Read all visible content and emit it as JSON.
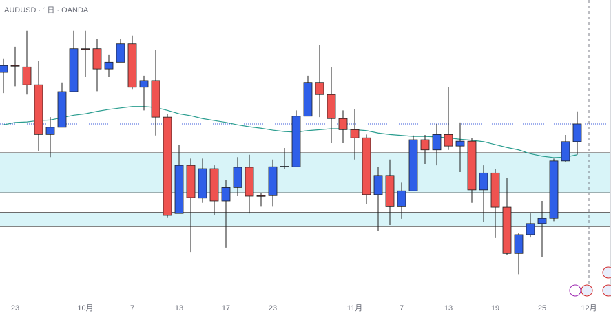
{
  "chart_data": {
    "type": "candlestick",
    "title": "AUDUSD · 1日 · OANDA",
    "categories": [
      null,
      "23",
      null,
      null,
      null,
      null,
      null,
      "10月",
      null,
      null,
      null,
      "7",
      null,
      null,
      null,
      "13",
      null,
      null,
      null,
      "17",
      null,
      null,
      null,
      "23",
      null,
      null,
      null,
      null,
      null,
      null,
      "11月",
      null,
      null,
      null,
      "7",
      null,
      null,
      null,
      "13",
      null,
      null,
      null,
      "19",
      null,
      null,
      null,
      "25",
      null,
      null,
      null,
      "12月"
    ],
    "open": [
      0.685,
      0.6864,
      0.6861,
      0.6824,
      0.6721,
      0.6736,
      0.681,
      0.6899,
      0.6899,
      0.6857,
      0.6871,
      0.6909,
      0.6819,
      0.6833,
      0.6757,
      0.6557,
      0.6657,
      0.6589,
      0.665,
      0.6583,
      0.6611,
      0.6653,
      0.6594,
      0.6594,
      0.6654,
      0.6654,
      0.6759,
      0.6829,
      0.6804,
      0.6754,
      0.6731,
      0.6714,
      0.6596,
      0.6636,
      0.6571,
      0.6604,
      0.671,
      0.6689,
      0.6721,
      0.6697,
      0.6707,
      0.6606,
      0.6641,
      0.657,
      0.6474,
      0.6513,
      0.6536,
      0.6547,
      0.6666,
      0.6706,
      null
    ],
    "high": [
      0.6879,
      0.6903,
      0.6936,
      0.6874,
      0.6757,
      0.6829,
      0.6936,
      0.6936,
      0.6919,
      0.6886,
      0.6919,
      0.6926,
      0.6843,
      0.6897,
      0.6764,
      0.67,
      0.6671,
      0.6671,
      0.6657,
      0.6626,
      0.6674,
      0.6679,
      0.66,
      0.6669,
      0.6693,
      0.6771,
      0.6843,
      0.6907,
      0.686,
      0.6771,
      0.6774,
      0.6721,
      0.6653,
      0.6669,
      0.6621,
      0.6719,
      0.672,
      0.6743,
      0.6819,
      0.6746,
      0.6714,
      0.6657,
      0.665,
      0.6631,
      0.6517,
      0.6557,
      0.6583,
      0.6671,
      0.672,
      0.6769,
      null
    ],
    "low": [
      0.6807,
      0.6821,
      0.6804,
      0.6686,
      0.6674,
      0.6736,
      0.681,
      0.684,
      0.6811,
      0.684,
      0.6871,
      0.6814,
      0.6771,
      0.6719,
      0.6549,
      0.6557,
      0.6477,
      0.6579,
      0.6554,
      0.6486,
      0.6593,
      0.6557,
      0.6571,
      0.6571,
      0.665,
      0.6654,
      0.6759,
      0.6757,
      0.6703,
      0.6703,
      0.6669,
      0.6577,
      0.6521,
      0.6533,
      0.6546,
      0.6604,
      0.666,
      0.6657,
      0.6689,
      0.6643,
      0.6579,
      0.654,
      0.6506,
      0.6471,
      0.6431,
      0.6507,
      0.6467,
      0.6541,
      0.6664,
      0.6679,
      null
    ],
    "close": [
      0.6864,
      0.6863,
      0.6824,
      0.6721,
      0.6736,
      0.681,
      0.6899,
      0.6898,
      0.6857,
      0.6871,
      0.6909,
      0.6819,
      0.6833,
      0.6757,
      0.6553,
      0.6657,
      0.659,
      0.665,
      0.6583,
      0.6611,
      0.6653,
      0.6593,
      0.6593,
      0.6654,
      0.6655,
      0.6759,
      0.6829,
      0.6804,
      0.6754,
      0.6731,
      0.6714,
      0.6596,
      0.6636,
      0.6571,
      0.6604,
      0.671,
      0.6689,
      0.6721,
      0.6697,
      0.6707,
      0.6606,
      0.6641,
      0.657,
      0.6474,
      0.6513,
      0.6536,
      0.6547,
      0.6666,
      0.6706,
      0.6743,
      null
    ],
    "ma": {
      "color": "#2a9d8f",
      "values": [
        0.6741,
        0.6746,
        0.6747,
        0.675,
        0.6751,
        0.6756,
        0.6761,
        0.6764,
        0.6769,
        0.6773,
        0.6776,
        0.6779,
        0.6779,
        0.6777,
        0.6771,
        0.6764,
        0.676,
        0.6754,
        0.675,
        0.6746,
        0.6741,
        0.6737,
        0.6734,
        0.673,
        0.6727,
        0.6726,
        0.6729,
        0.6731,
        0.6733,
        0.6733,
        0.6731,
        0.6729,
        0.6724,
        0.6721,
        0.6719,
        0.6717,
        0.6717,
        0.6716,
        0.6714,
        0.6711,
        0.6709,
        0.6706,
        0.67,
        0.6694,
        0.6689,
        0.6681,
        0.6676,
        0.6673,
        0.6674,
        0.6679,
        null
      ]
    },
    "zones": [
      [
        0.6683,
        0.66
      ],
      [
        0.6559,
        0.653
      ]
    ],
    "zone_color": "#d8f4f8",
    "price_line": 0.6743,
    "price_line_color": "#3b5bdb",
    "up_color": "#2f5fe8",
    "down_color": "#ef5350",
    "ylim": [
      0.6383,
      0.7
    ]
  }
}
